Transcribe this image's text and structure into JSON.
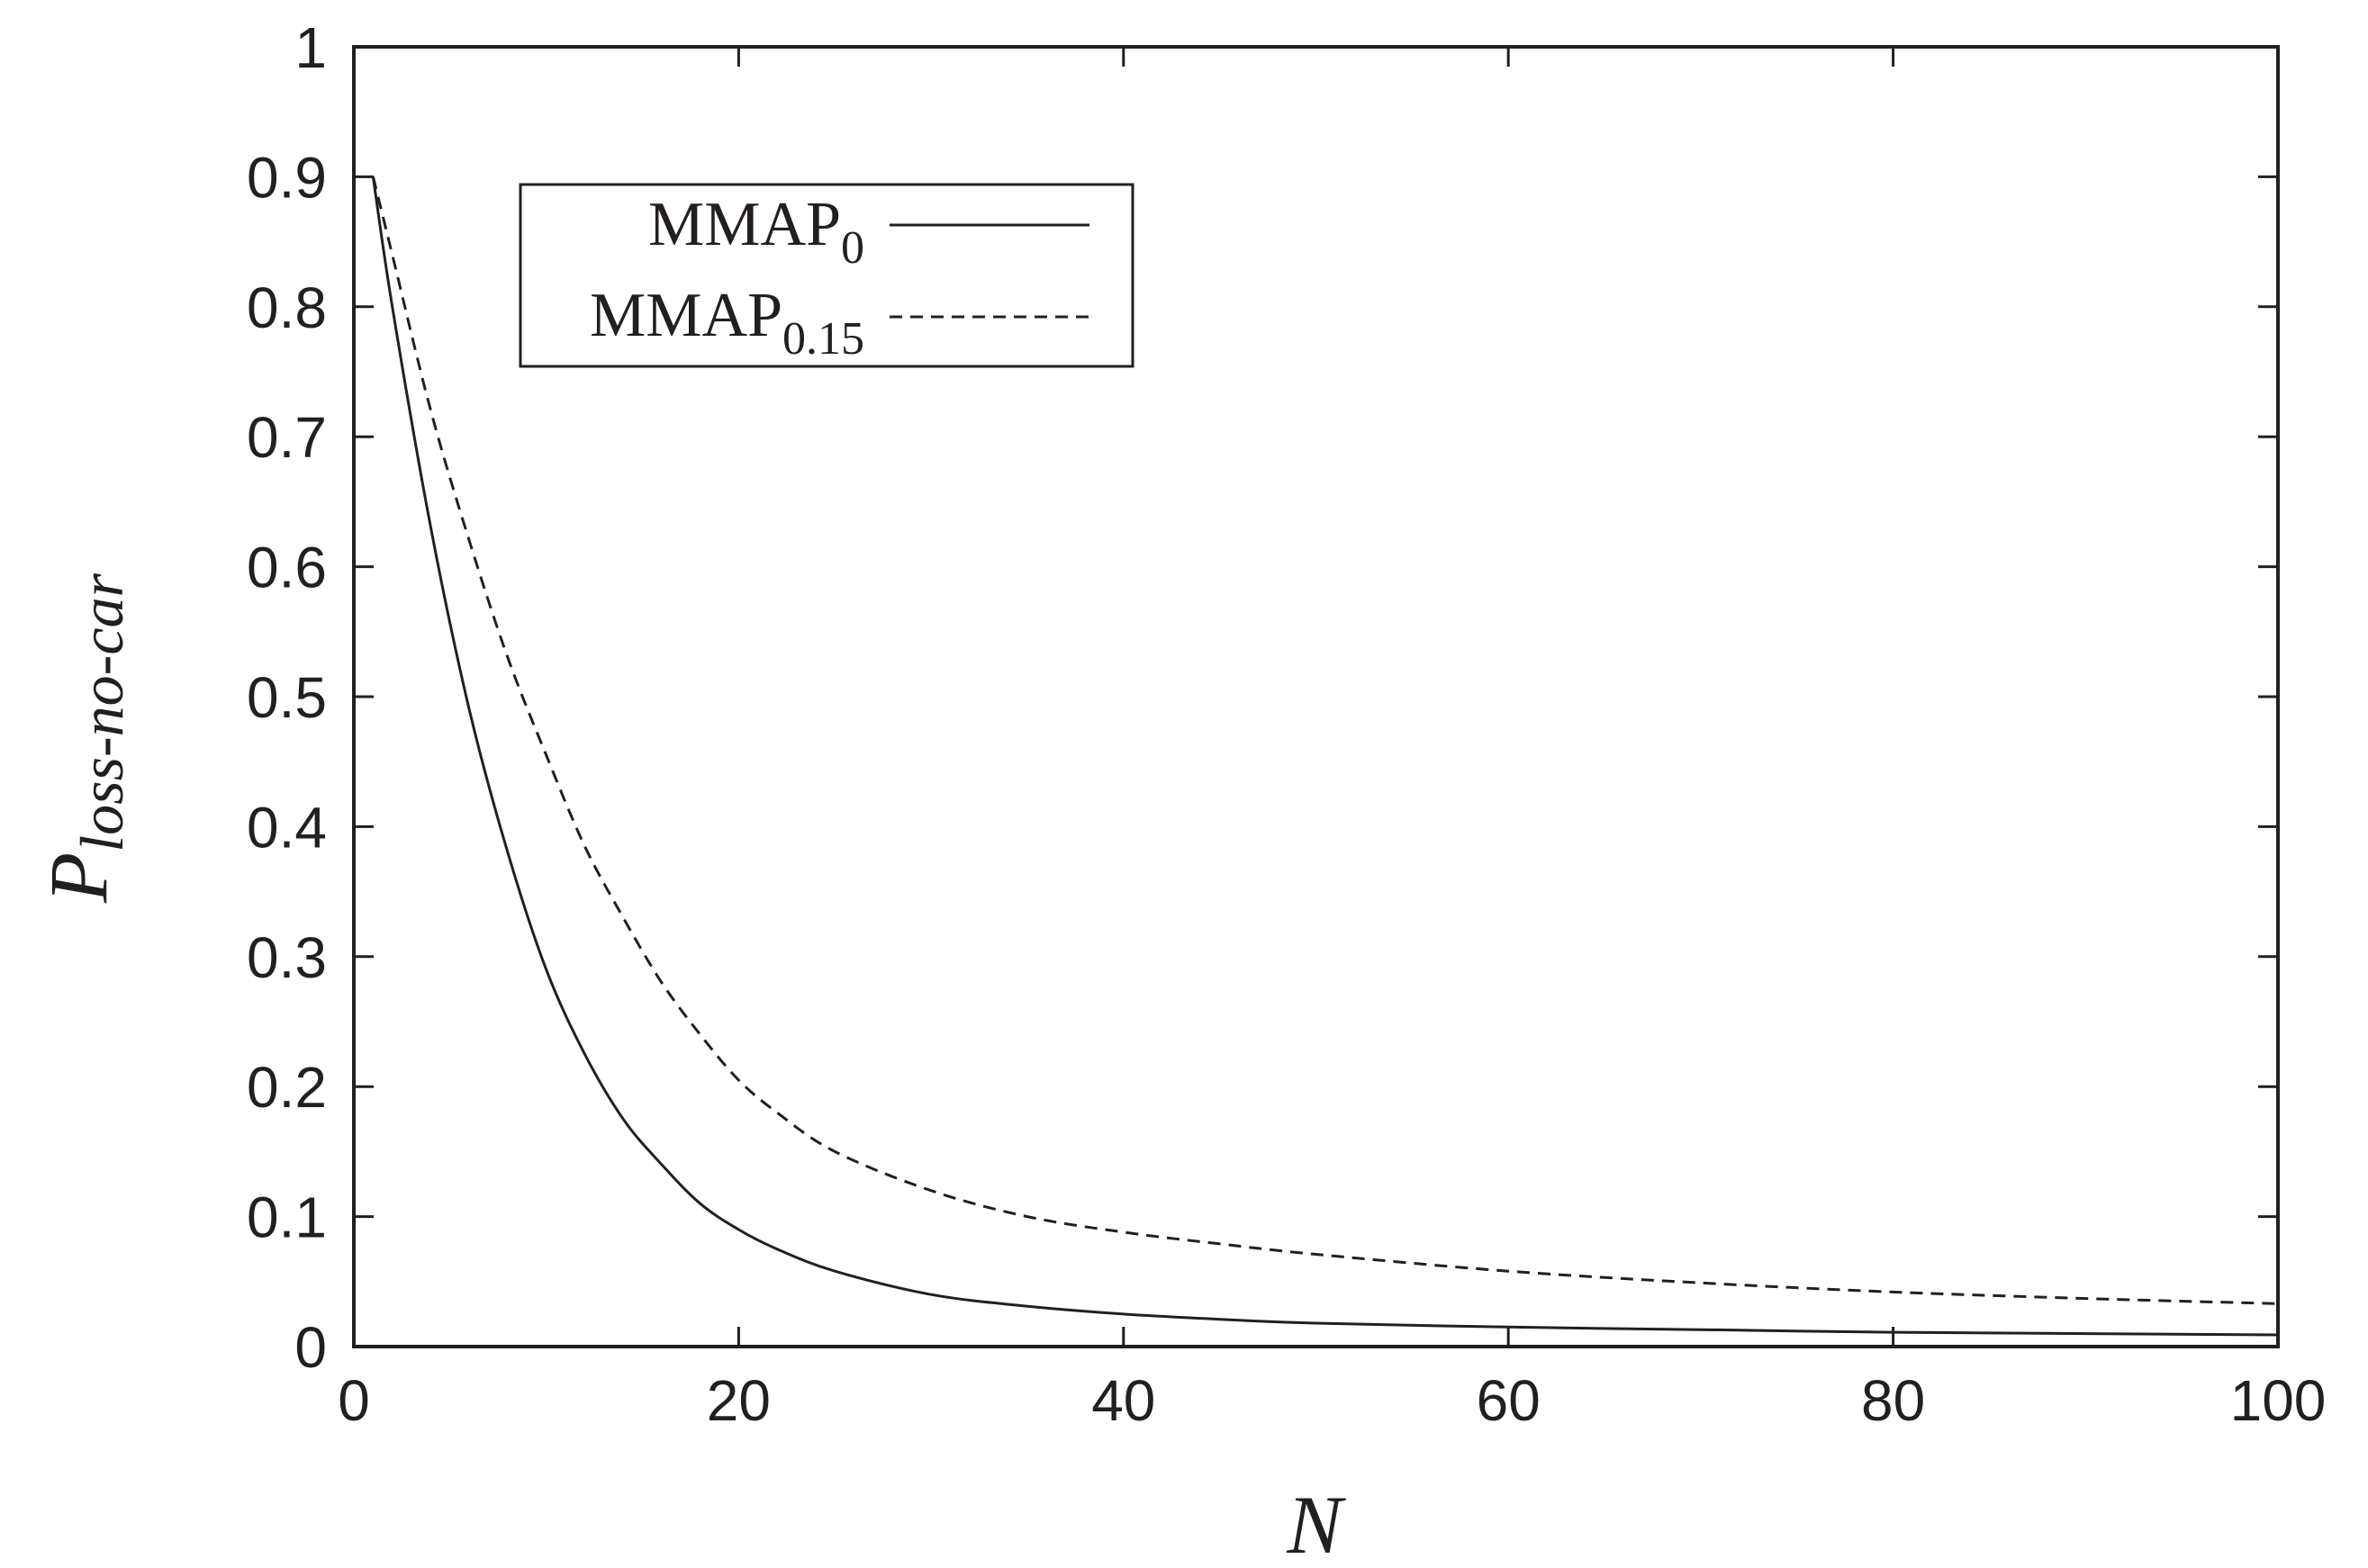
{
  "chart_data": {
    "type": "line",
    "title": "",
    "xlabel": "N",
    "ylabel": {
      "main": "P",
      "subscript": "loss-no-car"
    },
    "xlim": [
      0,
      100
    ],
    "ylim": [
      0,
      1
    ],
    "grid": false,
    "legend_position": "top-left",
    "x_ticks": [
      "0",
      "20",
      "40",
      "60",
      "80",
      "100"
    ],
    "y_ticks": [
      "0",
      "0.1",
      "0.2",
      "0.3",
      "0.4",
      "0.5",
      "0.6",
      "0.7",
      "0.8",
      "0.9",
      "1"
    ],
    "line_color": "#231f20",
    "series": [
      {
        "name": "MMAP",
        "name_subscript": "0",
        "style": "solid",
        "x": [
          1,
          2,
          4,
          6,
          8,
          10,
          12,
          14,
          16,
          18,
          20,
          22,
          25,
          30,
          35,
          40,
          45,
          50,
          60,
          70,
          80,
          90,
          100
        ],
        "y": [
          0.9,
          0.8,
          0.63,
          0.49,
          0.38,
          0.29,
          0.225,
          0.175,
          0.14,
          0.11,
          0.09,
          0.075,
          0.058,
          0.04,
          0.031,
          0.025,
          0.021,
          0.018,
          0.015,
          0.013,
          0.011,
          0.01,
          0.009
        ]
      },
      {
        "name": "MMAP",
        "name_subscript": "0.15",
        "style": "dashed",
        "x": [
          1,
          2,
          4,
          6,
          8,
          10,
          12,
          14,
          16,
          18,
          20,
          22,
          25,
          30,
          35,
          40,
          45,
          50,
          60,
          70,
          80,
          90,
          100
        ],
        "y": [
          0.9,
          0.84,
          0.72,
          0.62,
          0.53,
          0.455,
          0.385,
          0.33,
          0.28,
          0.24,
          0.205,
          0.18,
          0.15,
          0.12,
          0.1,
          0.088,
          0.079,
          0.071,
          0.058,
          0.049,
          0.042,
          0.037,
          0.033
        ]
      }
    ]
  }
}
